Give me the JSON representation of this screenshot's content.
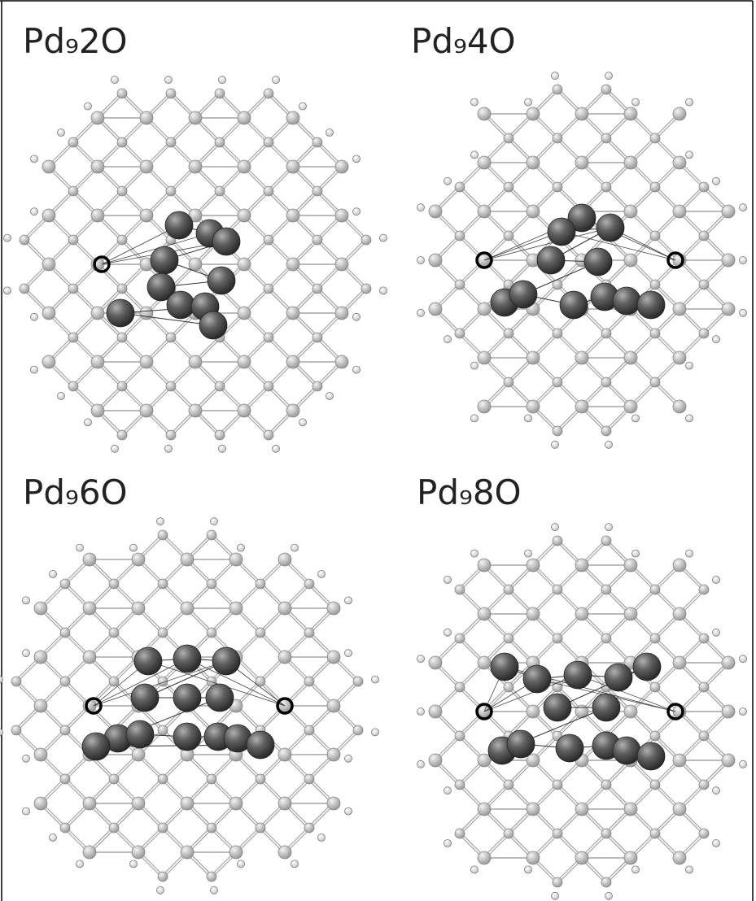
{
  "panels": [
    {
      "label": "Pd₉2O"
    },
    {
      "label": "Pd₉4O"
    },
    {
      "label": "Pd₉6O"
    },
    {
      "label": "Pd₉8O"
    }
  ]
}
